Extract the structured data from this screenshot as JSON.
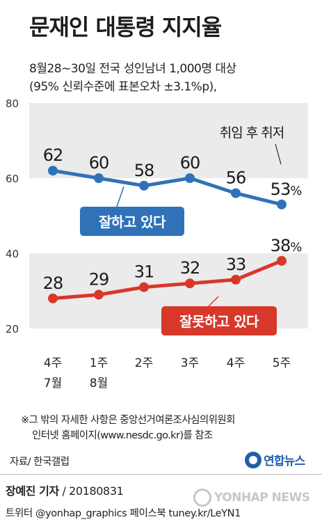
{
  "chart_data": {
    "type": "line",
    "title": "문재인 대통령 지지율",
    "subtitle": [
      "8월28∼30일 전국 성인남녀 1,000명 대상",
      "(95% 신뢰수준에 표본오차 ±3.1%p),"
    ],
    "categories": [
      [
        "4주",
        "7월"
      ],
      [
        "1주",
        "8월"
      ],
      [
        "2주",
        ""
      ],
      [
        "3주",
        ""
      ],
      [
        "4주",
        ""
      ],
      [
        "5주",
        ""
      ]
    ],
    "ylim": [
      20,
      80
    ],
    "yticks": [
      20,
      40,
      60,
      80
    ],
    "series": [
      {
        "name": "잘하고 있다",
        "color": "#2f72b8",
        "values": [
          62,
          60,
          58,
          60,
          56,
          53
        ],
        "labels": [
          "62",
          "60",
          "58",
          "60",
          "56",
          "53%"
        ]
      },
      {
        "name": "잘못하고 있다",
        "color": "#d8382a",
        "values": [
          28,
          29,
          31,
          32,
          33,
          38
        ],
        "labels": [
          "28",
          "29",
          "31",
          "32",
          "33",
          "38%"
        ]
      }
    ],
    "annotation": "취임 후 취저",
    "grid": false
  },
  "footer": {
    "note1": "※그 밖의 자세한 사항은 중앙선거여론조사심의위원회",
    "note2": "인터넷 홈페이지(www.nesdc.go.kr)를 참조",
    "source": "자료/ 한국갤럽",
    "logo": "연합뉴스",
    "reporter": "장예진 기자",
    "date": "/ 20180831",
    "social": "트위터 @yonhap_graphics  페이스북 tuney.kr/LeYN1",
    "watermark": "YONHAP NEWS"
  }
}
